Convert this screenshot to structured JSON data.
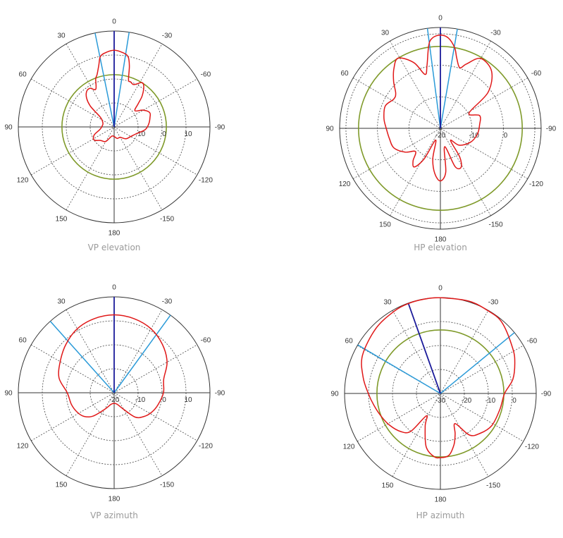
{
  "colors": {
    "pattern": "#e01818",
    "reference": "#7f9a2a",
    "beam_main": "#1a1a9a",
    "beam_edge": "#2a9ad8",
    "grid": "#555555",
    "caption": "#9a9a9a"
  },
  "chart_data": [
    {
      "type": "polar",
      "title": "VP elevation",
      "angle_ticks": [
        "0",
        "30",
        "60",
        "90",
        "120",
        "150",
        "180",
        "-150",
        "-120",
        "-90",
        "-60",
        "-30"
      ],
      "angle_direction": "counterclockwise-positive, 0 at top",
      "rlim": [
        -20,
        20
      ],
      "r_rings": [
        -10,
        0,
        10
      ],
      "r_tick_labels": [
        "-10",
        "0",
        "10"
      ],
      "grid": true,
      "reference_circle_db": 1.8,
      "beam_lines": {
        "main": [
          0
        ],
        "edges": [
          11.5,
          -9
        ]
      },
      "pattern": [
        [
          0,
          12
        ],
        [
          6,
          11.3
        ],
        [
          11,
          10
        ],
        [
          14,
          6.5
        ],
        [
          18,
          3
        ],
        [
          21,
          1.5
        ],
        [
          26,
          -2.5
        ],
        [
          32,
          -1
        ],
        [
          38,
          -1.3
        ],
        [
          44,
          -3.5
        ],
        [
          49,
          -7
        ],
        [
          55,
          -13
        ],
        [
          70,
          -15
        ],
        [
          85,
          -15
        ],
        [
          100,
          -14
        ],
        [
          112,
          -11
        ],
        [
          123,
          -10
        ],
        [
          135,
          -12
        ],
        [
          150,
          -13
        ],
        [
          165,
          -16
        ],
        [
          180,
          -16
        ],
        [
          -165,
          -15
        ],
        [
          -150,
          -15
        ],
        [
          -135,
          -13
        ],
        [
          -120,
          -12
        ],
        [
          -108,
          -10.5
        ],
        [
          -95,
          -7
        ],
        [
          -85,
          -5.5
        ],
        [
          -75,
          -4.5
        ],
        [
          -68,
          -4
        ],
        [
          -60,
          -6
        ],
        [
          -52,
          -9
        ],
        [
          -46,
          -6
        ],
        [
          -42,
          -2.5
        ],
        [
          -36,
          1
        ],
        [
          -32,
          1.8
        ],
        [
          -27,
          0
        ],
        [
          -24,
          -0.6
        ],
        [
          -20,
          0
        ],
        [
          -17,
          0.5
        ],
        [
          -14,
          6.3
        ],
        [
          -11,
          10
        ],
        [
          -6,
          11.3
        ]
      ]
    },
    {
      "type": "polar",
      "title": "HP elevation",
      "angle_ticks": [
        "0",
        "30",
        "60",
        "90",
        "120",
        "150",
        "180",
        "-150",
        "-120",
        "-90",
        "-60",
        "-30"
      ],
      "angle_direction": "counterclockwise-positive, 0 at top",
      "rlim": [
        -20,
        12
      ],
      "r_rings": [
        -10,
        0,
        10
      ],
      "r_tick_labels": [
        "-20",
        "-10",
        "0"
      ],
      "grid": true,
      "reference_circle_db": 6,
      "beam_lines": {
        "main": [
          0
        ],
        "edges": [
          7.4,
          -9.7
        ]
      },
      "pattern": [
        [
          0,
          9.6
        ],
        [
          5,
          8.8
        ],
        [
          8,
          6.6
        ],
        [
          12,
          0.4
        ],
        [
          16,
          -2.2
        ],
        [
          22,
          2.5
        ],
        [
          31,
          6
        ],
        [
          38,
          4
        ],
        [
          45,
          1
        ],
        [
          52,
          -2
        ],
        [
          58,
          -2.5
        ],
        [
          68,
          -1.1
        ],
        [
          80,
          -1.8
        ],
        [
          90,
          -2.8
        ],
        [
          102,
          -3.5
        ],
        [
          113,
          -4
        ],
        [
          124,
          -6.5
        ],
        [
          133,
          -9.2
        ],
        [
          140,
          -6.5
        ],
        [
          146,
          -5.2
        ],
        [
          152,
          -9
        ],
        [
          158,
          -16
        ],
        [
          166,
          -10
        ],
        [
          173,
          -5.5
        ],
        [
          180,
          -3.3
        ],
        [
          -173,
          -6
        ],
        [
          -167,
          -14
        ],
        [
          -159,
          -7
        ],
        [
          -152,
          -6
        ],
        [
          -146,
          -9
        ],
        [
          -140,
          -15
        ],
        [
          -132,
          -12
        ],
        [
          -115,
          -9.5
        ],
        [
          -99,
          -8.1
        ],
        [
          -85,
          -7.5
        ],
        [
          -72,
          -6.9
        ],
        [
          -62,
          -9.7
        ],
        [
          -53,
          -1.1
        ],
        [
          -42,
          4.3
        ],
        [
          -30,
          5.6
        ],
        [
          -22,
          2
        ],
        [
          -17.7,
          0.2
        ],
        [
          -13,
          3
        ],
        [
          -10,
          6
        ],
        [
          -5,
          8.8
        ]
      ]
    },
    {
      "type": "polar",
      "title": "VP azimuth",
      "angle_ticks": [
        "0",
        "30",
        "60",
        "90",
        "120",
        "150",
        "180",
        "-150",
        "-120",
        "-90",
        "-60",
        "-30"
      ],
      "angle_direction": "counterclockwise-positive, 0 at top",
      "rlim": [
        -20,
        20
      ],
      "r_rings": [
        -10,
        0,
        10
      ],
      "r_tick_labels": [
        "-20",
        "-10",
        "0",
        "10"
      ],
      "grid": true,
      "beam_lines": {
        "main": [
          0
        ],
        "edges": [
          41.8,
          -36
        ]
      },
      "pattern": [
        [
          0,
          12.5
        ],
        [
          15,
          12
        ],
        [
          30,
          10.8
        ],
        [
          45,
          8.5
        ],
        [
          60,
          6
        ],
        [
          75,
          3.8
        ],
        [
          90,
          -0.4
        ],
        [
          105,
          -1.5
        ],
        [
          117,
          -2.5
        ],
        [
          128,
          -4
        ],
        [
          138,
          -6.9
        ],
        [
          150,
          -12
        ],
        [
          165,
          -15
        ],
        [
          180,
          -15.6
        ],
        [
          -165,
          -15
        ],
        [
          -150,
          -12
        ],
        [
          -139,
          -6.5
        ],
        [
          -128,
          -4
        ],
        [
          -117,
          -2.3
        ],
        [
          -105,
          -1
        ],
        [
          -90,
          0.6
        ],
        [
          -75,
          1.4
        ],
        [
          -60,
          5.5
        ],
        [
          -45,
          8.5
        ],
        [
          -30,
          10.8
        ],
        [
          -15,
          12
        ]
      ]
    },
    {
      "type": "polar",
      "title": "HP azimuth",
      "angle_ticks": [
        "0",
        "30",
        "60",
        "90",
        "120",
        "150",
        "180",
        "-150",
        "-120",
        "-90",
        "-60",
        "-30"
      ],
      "angle_direction": "counterclockwise-positive, 0 at top",
      "rlim": [
        -30,
        10
      ],
      "r_rings": [
        -20,
        -10,
        0
      ],
      "r_tick_labels": [
        "-30",
        "-20",
        "-10",
        "0"
      ],
      "grid": true,
      "reference_circle_db": -3.5,
      "beam_lines": {
        "main": [
          19.6
        ],
        "edges": [
          59.6,
          -50.6
        ]
      },
      "pattern": [
        [
          0,
          9.9
        ],
        [
          10,
          9.9
        ],
        [
          20,
          9.8
        ],
        [
          30,
          9.3
        ],
        [
          45,
          8.2
        ],
        [
          64,
          6.2
        ],
        [
          78,
          3
        ],
        [
          90,
          0.1
        ],
        [
          100,
          -1.8
        ],
        [
          111,
          -3.5
        ],
        [
          122,
          -5
        ],
        [
          134,
          -7.1
        ],
        [
          142,
          -10
        ],
        [
          148,
          -19
        ],
        [
          155,
          -15
        ],
        [
          165,
          -7
        ],
        [
          174,
          -3.6
        ],
        [
          180,
          -3.2
        ],
        [
          -172,
          -4
        ],
        [
          -165,
          -8
        ],
        [
          -160,
          -12
        ],
        [
          -154,
          -16
        ],
        [
          -145,
          -8.8
        ],
        [
          -135,
          -6.5
        ],
        [
          -122,
          -4.7
        ],
        [
          -105,
          -4.3
        ],
        [
          -90,
          -3.2
        ],
        [
          -79,
          0.8
        ],
        [
          -68,
          3.5
        ],
        [
          -58,
          5.6
        ],
        [
          -41,
          9.2
        ],
        [
          -30,
          9.8
        ],
        [
          -17,
          10.3
        ]
      ]
    }
  ]
}
